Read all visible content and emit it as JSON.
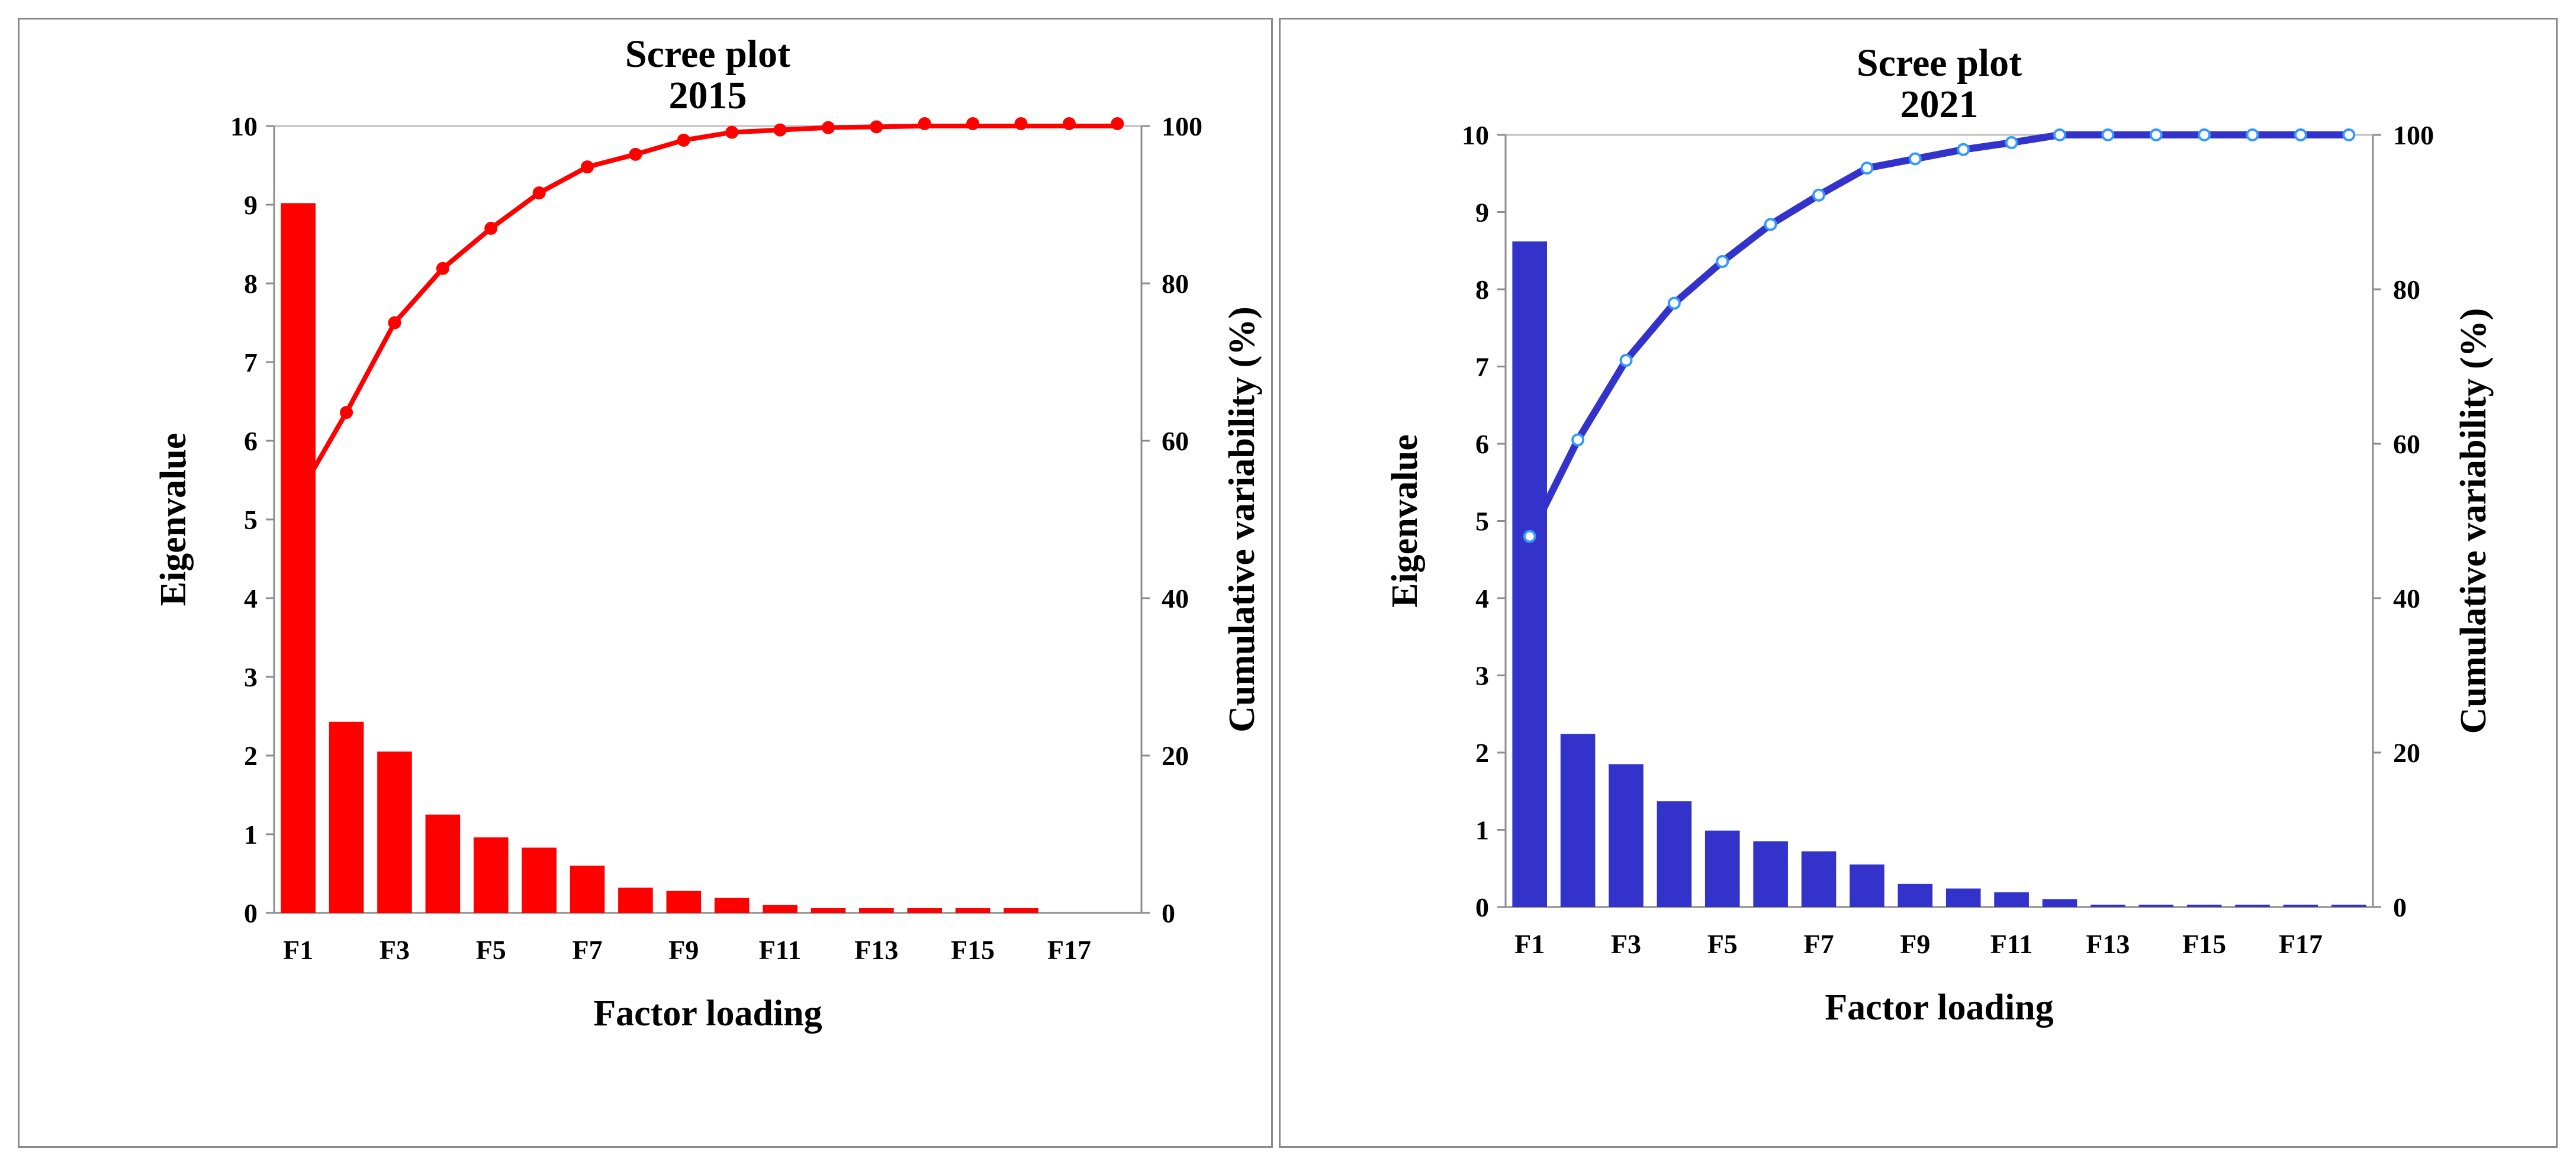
{
  "chart_data": [
    {
      "type": "bar",
      "title": "Scree plot",
      "subtitle": "2015",
      "xlabel": "Factor loading",
      "ylabel": "Eigenvalue",
      "y2label": "Cumulative variability (%)",
      "categories": [
        "F1",
        "F2",
        "F3",
        "F4",
        "F5",
        "F6",
        "F7",
        "F8",
        "F9",
        "F10",
        "F11",
        "F12",
        "F13",
        "F14",
        "F15",
        "F16",
        "F17",
        "F18"
      ],
      "x_tick_labels": [
        "F1",
        "F3",
        "F5",
        "F7",
        "F9",
        "F11",
        "F13",
        "F15",
        "F17"
      ],
      "ylim": [
        0,
        10
      ],
      "y_ticks": [
        "0",
        "1",
        "2",
        "3",
        "4",
        "5",
        "6",
        "7",
        "8",
        "9",
        "10"
      ],
      "y2lim": [
        0,
        100
      ],
      "y2_ticks": [
        "0",
        "20",
        "40",
        "60",
        "80",
        "100"
      ],
      "grid": false,
      "series": [
        {
          "type": "bar",
          "axis": "left",
          "color": "#ff0000",
          "values": [
            9.02,
            2.43,
            2.05,
            1.25,
            0.96,
            0.83,
            0.6,
            0.32,
            0.28,
            0.19,
            0.1,
            0.06,
            0.06,
            0.06,
            0.06,
            0.06,
            0.0,
            0.0
          ]
        },
        {
          "type": "line",
          "axis": "right",
          "color": "#ff0000",
          "marker": "filled-dot",
          "values": [
            53.0,
            63.6,
            75.0,
            81.9,
            87.0,
            91.5,
            94.8,
            96.4,
            98.2,
            99.2,
            99.5,
            99.8,
            99.9,
            100.3,
            100.3,
            100.3,
            100.3,
            100.3
          ]
        }
      ]
    },
    {
      "type": "bar",
      "title": "Scree plot",
      "subtitle": "2021",
      "xlabel": "Factor loading",
      "ylabel": "Eigenvalue",
      "y2label": "Cumulative variability (%)",
      "categories": [
        "F1",
        "F2",
        "F3",
        "F4",
        "F5",
        "F6",
        "F7",
        "F8",
        "F9",
        "F10",
        "F11",
        "F12",
        "F13",
        "F14",
        "F15",
        "F16",
        "F17",
        "F18"
      ],
      "x_tick_labels": [
        "F1",
        "F3",
        "F5",
        "F7",
        "F9",
        "F11",
        "F13",
        "F15",
        "F17"
      ],
      "ylim": [
        0,
        10
      ],
      "y_ticks": [
        "0",
        "1",
        "2",
        "3",
        "4",
        "5",
        "6",
        "7",
        "8",
        "9",
        "10"
      ],
      "y2lim": [
        0,
        100
      ],
      "y2_ticks": [
        "0",
        "20",
        "40",
        "60",
        "80",
        "100"
      ],
      "grid": false,
      "series": [
        {
          "type": "bar",
          "axis": "left",
          "color": "#3333cc",
          "values": [
            8.62,
            2.24,
            1.85,
            1.37,
            0.99,
            0.85,
            0.72,
            0.55,
            0.3,
            0.24,
            0.19,
            0.1,
            0.03,
            0.03,
            0.03,
            0.03,
            0.03,
            0.03
          ]
        },
        {
          "type": "line",
          "axis": "right",
          "color": "#3333cc",
          "marker_color": "#3399ff",
          "marker": "open-circle",
          "values": [
            48.0,
            60.5,
            70.8,
            78.2,
            83.6,
            88.4,
            92.2,
            95.7,
            96.9,
            98.1,
            99.0,
            100.0,
            100.0,
            100.0,
            100.0,
            100.0,
            100.0,
            100.0
          ]
        }
      ]
    }
  ]
}
